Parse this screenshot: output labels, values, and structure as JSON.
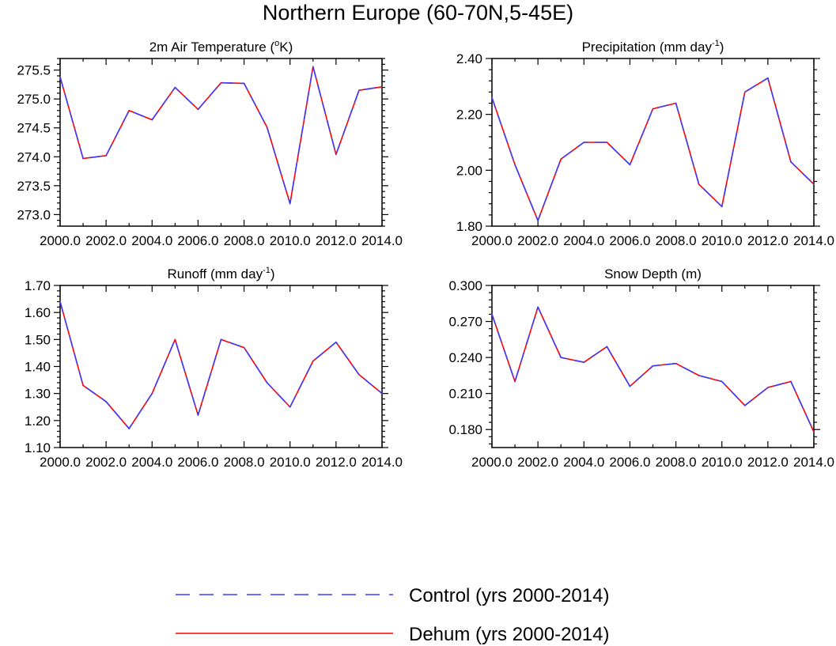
{
  "figure": {
    "title": "Northern Europe (60-70N,5-45E)"
  },
  "legend": [
    {
      "label": "Control (yrs 2000-2014)",
      "color": "#3b3bff",
      "dash": "dashed"
    },
    {
      "label": "Dehum (yrs 2000-2014)",
      "color": "#ff0000",
      "dash": "solid"
    }
  ],
  "chart_data": [
    {
      "type": "line",
      "title": {
        "text": "2m Air Temperature (",
        "sup": "o",
        "after": "K)"
      },
      "xlim": [
        2000,
        2014
      ],
      "xticks": [
        "2000.0",
        "2002.0",
        "2004.0",
        "2006.0",
        "2008.0",
        "2010.0",
        "2012.0",
        "2014.0"
      ],
      "ylim": [
        272.8,
        275.7
      ],
      "yticks": [
        "273.0",
        "273.5",
        "274.0",
        "274.5",
        "275.0",
        "275.5"
      ],
      "x": [
        2000,
        2001,
        2002,
        2003,
        2004,
        2005,
        2006,
        2007,
        2008,
        2009,
        2010,
        2011,
        2012,
        2013,
        2014
      ],
      "series": [
        {
          "name": "Control (yrs 2000-2014)",
          "values": [
            275.38,
            273.97,
            274.02,
            274.8,
            274.64,
            275.2,
            274.82,
            275.28,
            275.27,
            274.51,
            273.19,
            275.56,
            274.04,
            275.15,
            275.21
          ]
        },
        {
          "name": "Dehum (yrs 2000-2014)",
          "values": [
            275.38,
            273.97,
            274.02,
            274.8,
            274.64,
            275.2,
            274.82,
            275.28,
            275.27,
            274.51,
            273.19,
            275.56,
            274.04,
            275.15,
            275.21
          ]
        }
      ]
    },
    {
      "type": "line",
      "title": {
        "text": "Precipitation (mm day",
        "sup": "-1",
        "after": ")"
      },
      "xlim": [
        2000,
        2014
      ],
      "xticks": [
        "2000.0",
        "2002.0",
        "2004.0",
        "2006.0",
        "2008.0",
        "2010.0",
        "2012.0",
        "2014.0"
      ],
      "ylim": [
        1.8,
        2.4
      ],
      "yticks": [
        "1.80",
        "2.00",
        "2.20",
        "2.40"
      ],
      "x": [
        2000,
        2001,
        2002,
        2003,
        2004,
        2005,
        2006,
        2007,
        2008,
        2009,
        2010,
        2011,
        2012,
        2013,
        2014
      ],
      "series": [
        {
          "name": "Control (yrs 2000-2014)",
          "values": [
            2.26,
            2.02,
            1.82,
            2.04,
            2.1,
            2.1,
            2.02,
            2.22,
            2.24,
            1.95,
            1.87,
            2.28,
            2.33,
            2.03,
            1.95
          ]
        },
        {
          "name": "Dehum (yrs 2000-2014)",
          "values": [
            2.26,
            2.02,
            1.82,
            2.04,
            2.1,
            2.1,
            2.02,
            2.22,
            2.24,
            1.95,
            1.87,
            2.28,
            2.33,
            2.03,
            1.95
          ]
        }
      ]
    },
    {
      "type": "line",
      "title": {
        "text": "Runoff (mm day",
        "sup": "-1",
        "after": ")"
      },
      "xlim": [
        2000,
        2014
      ],
      "xticks": [
        "2000.0",
        "2002.0",
        "2004.0",
        "2006.0",
        "2008.0",
        "2010.0",
        "2012.0",
        "2014.0"
      ],
      "ylim": [
        1.1,
        1.7
      ],
      "yticks": [
        "1.10",
        "1.20",
        "1.30",
        "1.40",
        "1.50",
        "1.60",
        "1.70"
      ],
      "x": [
        2000,
        2001,
        2002,
        2003,
        2004,
        2005,
        2006,
        2007,
        2008,
        2009,
        2010,
        2011,
        2012,
        2013,
        2014
      ],
      "series": [
        {
          "name": "Control (yrs 2000-2014)",
          "values": [
            1.64,
            1.33,
            1.27,
            1.17,
            1.3,
            1.5,
            1.22,
            1.5,
            1.47,
            1.34,
            1.25,
            1.42,
            1.49,
            1.37,
            1.3
          ]
        },
        {
          "name": "Dehum (yrs 2000-2014)",
          "values": [
            1.64,
            1.33,
            1.27,
            1.17,
            1.3,
            1.5,
            1.22,
            1.5,
            1.47,
            1.34,
            1.25,
            1.42,
            1.49,
            1.37,
            1.3
          ]
        }
      ]
    },
    {
      "type": "line",
      "title": {
        "text": "Snow Depth (m)",
        "sup": "",
        "after": ""
      },
      "xlim": [
        2000,
        2014
      ],
      "xticks": [
        "2000.0",
        "2002.0",
        "2004.0",
        "2006.0",
        "2008.0",
        "2010.0",
        "2012.0",
        "2014.0"
      ],
      "ylim": [
        0.165,
        0.3
      ],
      "yticks": [
        "0.180",
        "0.210",
        "0.240",
        "0.270",
        "0.300"
      ],
      "x": [
        2000,
        2001,
        2002,
        2003,
        2004,
        2005,
        2006,
        2007,
        2008,
        2009,
        2010,
        2011,
        2012,
        2013,
        2014
      ],
      "series": [
        {
          "name": "Control (yrs 2000-2014)",
          "values": [
            0.276,
            0.22,
            0.282,
            0.24,
            0.236,
            0.249,
            0.216,
            0.233,
            0.235,
            0.225,
            0.22,
            0.2,
            0.215,
            0.22,
            0.178
          ]
        },
        {
          "name": "Dehum (yrs 2000-2014)",
          "values": [
            0.276,
            0.22,
            0.282,
            0.24,
            0.236,
            0.249,
            0.216,
            0.233,
            0.235,
            0.225,
            0.22,
            0.2,
            0.215,
            0.22,
            0.178
          ]
        }
      ]
    }
  ]
}
